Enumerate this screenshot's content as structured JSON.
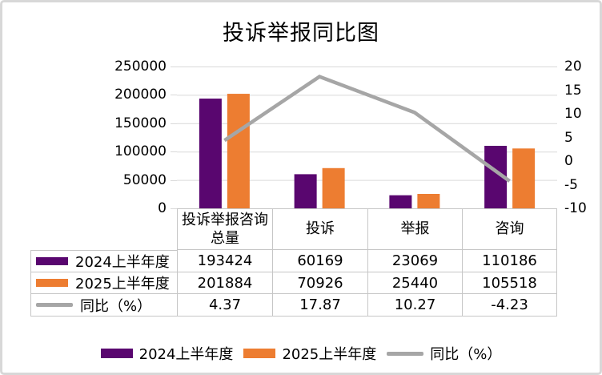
{
  "title": "投诉举报同比图",
  "colors": {
    "purple": "#59066F",
    "orange": "#ED7D31",
    "gray": "#A6A6A6",
    "grid": "#D9D9D9",
    "table_border": "#C6C6C6"
  },
  "chart_data": {
    "type": "bar",
    "subtype": "bar+line-combo",
    "title": "投诉举报同比图",
    "categories": [
      "投诉举报咨询总量",
      "投诉",
      "举报",
      "咨询"
    ],
    "series": [
      {
        "name": "2024上半年度",
        "type": "bar",
        "axis": "left",
        "color": "#59066F",
        "values": [
          193424,
          60169,
          23069,
          110186
        ]
      },
      {
        "name": "2025上半年度",
        "type": "bar",
        "axis": "left",
        "color": "#ED7D31",
        "values": [
          201884,
          70926,
          25440,
          105518
        ]
      },
      {
        "name": "同比（%）",
        "type": "line",
        "axis": "right",
        "color": "#A6A6A6",
        "values": [
          4.37,
          17.87,
          10.27,
          -4.23
        ]
      }
    ],
    "left_axis": {
      "min": 0,
      "max": 250000,
      "step": 50000,
      "ticks": [
        "250000",
        "200000",
        "150000",
        "100000",
        "50000",
        "0"
      ]
    },
    "right_axis": {
      "min": -10,
      "max": 20,
      "step": 5,
      "ticks": [
        "20",
        "15",
        "10",
        "5",
        "0",
        "-5",
        "-10"
      ]
    },
    "grid": true,
    "legend_position": "bottom"
  },
  "table": {
    "header": [
      "投诉举报咨询总量",
      "投诉",
      "举报",
      "咨询"
    ],
    "rows": [
      {
        "label": "2024上半年度",
        "swatch": "bar-purple",
        "values": [
          "193424",
          "60169",
          "23069",
          "110186"
        ]
      },
      {
        "label": "2025上半年度",
        "swatch": "bar-orange",
        "values": [
          "201884",
          "70926",
          "25440",
          "105518"
        ]
      },
      {
        "label": "同比（%）",
        "swatch": "line-gray",
        "values": [
          "4.37",
          "17.87",
          "10.27",
          "-4.23"
        ]
      }
    ]
  },
  "legend": {
    "items": [
      {
        "label": "2024上半年度",
        "swatch": "bar-purple"
      },
      {
        "label": "2025上半年度",
        "swatch": "bar-orange"
      },
      {
        "label": "同比（%）",
        "swatch": "line-gray"
      }
    ]
  }
}
